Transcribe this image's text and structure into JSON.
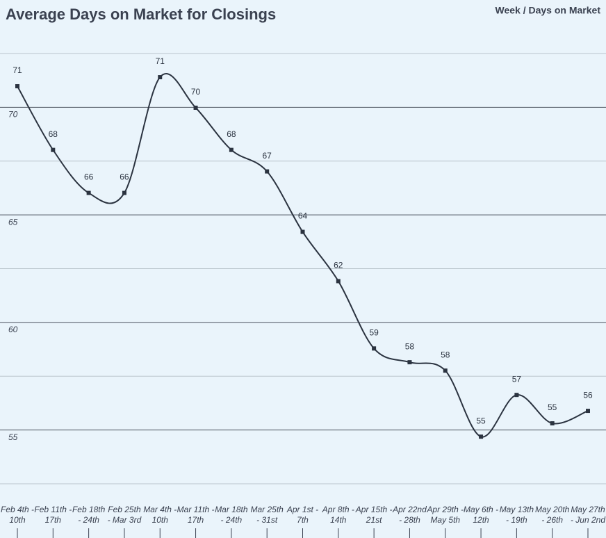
{
  "chart_data": {
    "type": "line",
    "title": "Average Days on Market for Closings",
    "legend_label": "Week / Days on Market",
    "categories": [
      "Feb 4th - 10th",
      "Feb 11th - 17th",
      "Feb 18th - 24th",
      "Feb 25th - Mar 3rd",
      "Mar 4th - 10th",
      "Mar 11th - 17th",
      "Mar 18th - 24th",
      "Mar 25th - 31st",
      "Apr 1st - 7th",
      "Apr 8th - 14th",
      "Apr 15th - 21st",
      "Apr 22nd - 28th",
      "Apr 29th - May 5th",
      "May 6th - 12th",
      "May 13th - 19th",
      "May 20th - 26th",
      "May 27th - Jun 2nd"
    ],
    "series": [
      {
        "name": "Days on Market",
        "color": "#2b3340",
        "values": [
          70.98,
          68.02,
          66.02,
          66.02,
          71.4,
          69.98,
          68.02,
          67.02,
          64.21,
          61.92,
          58.79,
          58.15,
          57.76,
          54.69,
          56.63,
          55.31,
          55.89
        ],
        "value_labels": [
          "71",
          "68",
          "66",
          "66",
          "71",
          "70",
          "68",
          "67",
          "64",
          "62",
          "59",
          "58",
          "58",
          "55",
          "57",
          "55",
          "56"
        ]
      }
    ],
    "ylim": [
      52.5,
      72.5
    ],
    "yticks": [
      55,
      60,
      65,
      70
    ],
    "yminor": [
      52.5,
      57.5,
      62.5,
      67.5,
      72.5
    ],
    "grid": true
  }
}
